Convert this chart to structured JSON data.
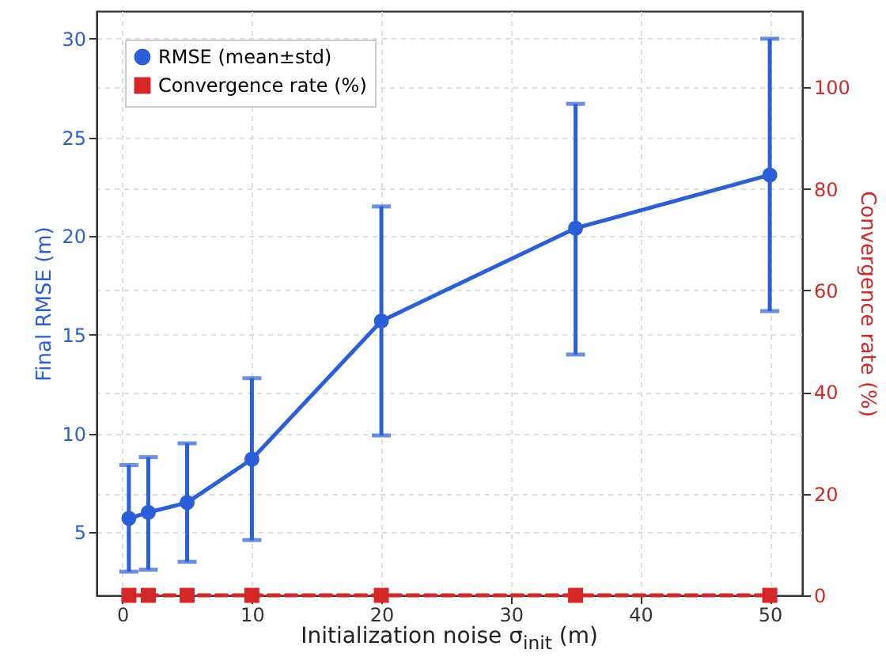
{
  "chart_data": {
    "type": "line",
    "xlabel": "Initialization noise σ$_{init}$ (m)",
    "ylabel": "Final RMSE (m)",
    "y2label": "Convergence rate (%)",
    "x": [
      0.5,
      2,
      5,
      10,
      20,
      35,
      50
    ],
    "series": [
      {
        "name": "RMSE (mean±std)",
        "color": "#2b5fd9",
        "values": [
          5.7,
          6.0,
          6.5,
          8.7,
          15.7,
          20.4,
          23.1
        ],
        "errors": [
          [
            3.0,
            8.4
          ],
          [
            3.1,
            8.8
          ],
          [
            3.5,
            9.5
          ],
          [
            4.6,
            12.8
          ],
          [
            9.9,
            21.5
          ],
          [
            14.0,
            26.7
          ],
          [
            16.2,
            30.0
          ]
        ],
        "marker": "circle",
        "line_style": "solid"
      },
      {
        "name": "Convergence rate (%)",
        "color": "#d62728",
        "values": [
          0,
          0,
          0,
          0,
          0,
          0,
          0
        ],
        "axis": "y2",
        "marker": "square",
        "line_style": "dashed"
      }
    ],
    "xlim": [
      -2,
      52.5
    ],
    "xticks": [
      0,
      10,
      20,
      30,
      40,
      50
    ],
    "ylim": [
      1.8,
      31.4
    ],
    "yticks": [
      5,
      10,
      15,
      20,
      25,
      30
    ],
    "y2lim": [
      0,
      115
    ],
    "y2ticks": [
      0,
      20,
      40,
      60,
      80,
      100
    ],
    "grid": true,
    "legend": "top left"
  }
}
